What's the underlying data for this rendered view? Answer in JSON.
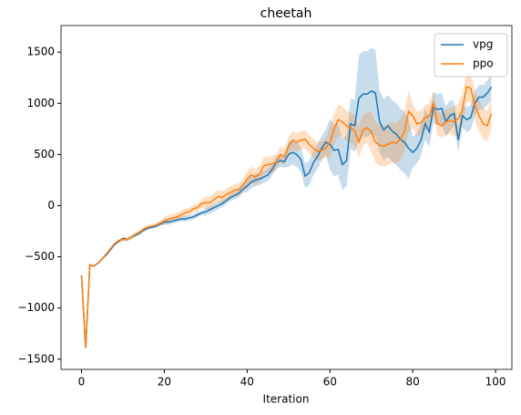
{
  "chart_data": {
    "type": "line",
    "title": "cheetah",
    "xlabel": "Iteration",
    "x": [
      0,
      1,
      2,
      3,
      4,
      5,
      6,
      7,
      8,
      9,
      10,
      11,
      12,
      13,
      14,
      15,
      16,
      17,
      18,
      19,
      20,
      21,
      22,
      23,
      24,
      25,
      26,
      27,
      28,
      29,
      30,
      31,
      32,
      33,
      34,
      35,
      36,
      37,
      38,
      39,
      40,
      41,
      42,
      43,
      44,
      45,
      46,
      47,
      48,
      49,
      50,
      51,
      52,
      53,
      54,
      55,
      56,
      57,
      58,
      59,
      60,
      61,
      62,
      63,
      64,
      65,
      66,
      67,
      68,
      69,
      70,
      71,
      72,
      73,
      74,
      75,
      76,
      77,
      78,
      79,
      80,
      81,
      82,
      83,
      84,
      85,
      86,
      87,
      88,
      89,
      90,
      91,
      92,
      93,
      94,
      95,
      96,
      97,
      98,
      99
    ],
    "series": [
      {
        "name": "vpg",
        "color": "#1f77b4",
        "values": [
          -680,
          -1390,
          -580,
          -590,
          -560,
          -520,
          -480,
          -430,
          -380,
          -350,
          -320,
          -330,
          -310,
          -290,
          -270,
          -240,
          -220,
          -210,
          -200,
          -180,
          -160,
          -160,
          -150,
          -140,
          -130,
          -130,
          -120,
          -110,
          -90,
          -70,
          -60,
          -40,
          -20,
          0,
          20,
          50,
          80,
          100,
          120,
          160,
          190,
          230,
          250,
          260,
          280,
          300,
          350,
          420,
          440,
          430,
          500,
          520,
          500,
          450,
          290,
          320,
          420,
          480,
          560,
          620,
          600,
          540,
          550,
          400,
          440,
          800,
          780,
          1050,
          1090,
          1090,
          1120,
          1100,
          820,
          740,
          780,
          730,
          700,
          650,
          620,
          560,
          520,
          560,
          640,
          800,
          720,
          960,
          940,
          950,
          820,
          880,
          900,
          640,
          880,
          840,
          860,
          1000,
          1060,
          1060,
          1100,
          1160
        ],
        "lower": [
          -690,
          -1400,
          -590,
          -600,
          -570,
          -530,
          -490,
          -440,
          -390,
          -360,
          -335,
          -345,
          -325,
          -305,
          -285,
          -255,
          -235,
          -225,
          -215,
          -195,
          -185,
          -185,
          -175,
          -165,
          -155,
          -155,
          -145,
          -135,
          -115,
          -95,
          -95,
          -75,
          -55,
          -35,
          -15,
          15,
          45,
          65,
          85,
          125,
          130,
          170,
          190,
          200,
          220,
          240,
          290,
          360,
          380,
          370,
          380,
          400,
          380,
          330,
          170,
          200,
          300,
          360,
          440,
          500,
          350,
          290,
          300,
          150,
          190,
          550,
          530,
          630,
          670,
          670,
          700,
          680,
          520,
          440,
          480,
          430,
          400,
          350,
          320,
          260,
          370,
          410,
          490,
          650,
          570,
          810,
          790,
          800,
          670,
          730,
          780,
          520,
          760,
          720,
          740,
          880,
          940,
          940,
          980,
          1040
        ],
        "upper": [
          -670,
          -1380,
          -570,
          -580,
          -550,
          -510,
          -470,
          -420,
          -370,
          -340,
          -305,
          -315,
          -295,
          -275,
          -255,
          -225,
          -205,
          -195,
          -185,
          -165,
          -135,
          -135,
          -125,
          -115,
          -105,
          -105,
          -95,
          -85,
          -65,
          -45,
          -25,
          -5,
          15,
          35,
          55,
          85,
          115,
          135,
          155,
          195,
          250,
          290,
          310,
          320,
          340,
          360,
          410,
          480,
          500,
          490,
          620,
          640,
          620,
          570,
          410,
          440,
          540,
          600,
          680,
          740,
          850,
          790,
          800,
          650,
          690,
          1050,
          1030,
          1470,
          1510,
          1510,
          1540,
          1520,
          1120,
          1040,
          1080,
          1030,
          1000,
          950,
          920,
          860,
          670,
          710,
          790,
          950,
          870,
          1110,
          1090,
          1100,
          970,
          1030,
          1020,
          760,
          1000,
          960,
          980,
          1120,
          1180,
          1180,
          1220,
          1280
        ]
      },
      {
        "name": "ppo",
        "color": "#ff7f0e",
        "values": [
          -680,
          -1390,
          -580,
          -590,
          -560,
          -520,
          -470,
          -420,
          -370,
          -340,
          -330,
          -330,
          -310,
          -280,
          -260,
          -230,
          -210,
          -200,
          -190,
          -170,
          -150,
          -130,
          -120,
          -110,
          -90,
          -70,
          -60,
          -30,
          -20,
          20,
          30,
          30,
          60,
          90,
          80,
          110,
          130,
          150,
          160,
          200,
          260,
          300,
          280,
          310,
          390,
          400,
          410,
          420,
          500,
          480,
          580,
          640,
          620,
          640,
          650,
          600,
          560,
          530,
          540,
          560,
          620,
          750,
          840,
          820,
          780,
          760,
          730,
          620,
          740,
          760,
          720,
          620,
          590,
          580,
          600,
          620,
          610,
          650,
          720,
          920,
          880,
          800,
          810,
          860,
          880,
          1000,
          800,
          780,
          820,
          830,
          820,
          850,
          940,
          1160,
          1150,
          980,
          880,
          800,
          780,
          900
        ],
        "lower": [
          -690,
          -1400,
          -590,
          -600,
          -570,
          -530,
          -480,
          -430,
          -380,
          -350,
          -350,
          -350,
          -330,
          -300,
          -280,
          -250,
          -230,
          -220,
          -210,
          -190,
          -190,
          -170,
          -160,
          -150,
          -130,
          -110,
          -100,
          -70,
          -60,
          -20,
          -30,
          -30,
          0,
          30,
          20,
          50,
          70,
          90,
          100,
          140,
          180,
          220,
          200,
          230,
          310,
          320,
          330,
          340,
          420,
          400,
          490,
          550,
          530,
          550,
          560,
          510,
          470,
          440,
          450,
          470,
          470,
          600,
          690,
          670,
          630,
          610,
          580,
          470,
          590,
          610,
          520,
          420,
          390,
          380,
          400,
          420,
          410,
          450,
          520,
          720,
          760,
          680,
          690,
          740,
          760,
          880,
          680,
          660,
          700,
          710,
          670,
          700,
          790,
          1010,
          1000,
          830,
          730,
          650,
          630,
          750
        ],
        "upper": [
          -670,
          -1380,
          -570,
          -580,
          -550,
          -510,
          -460,
          -410,
          -360,
          -330,
          -310,
          -310,
          -290,
          -260,
          -240,
          -210,
          -190,
          -180,
          -170,
          -150,
          -110,
          -90,
          -80,
          -70,
          -50,
          -30,
          -20,
          10,
          20,
          60,
          90,
          90,
          120,
          150,
          140,
          170,
          190,
          210,
          220,
          260,
          340,
          380,
          360,
          390,
          470,
          480,
          490,
          500,
          580,
          560,
          670,
          730,
          710,
          730,
          740,
          690,
          650,
          620,
          630,
          650,
          770,
          900,
          990,
          970,
          930,
          910,
          880,
          770,
          890,
          910,
          920,
          820,
          790,
          780,
          800,
          820,
          810,
          850,
          920,
          1120,
          1000,
          920,
          930,
          980,
          1000,
          1120,
          920,
          900,
          940,
          950,
          970,
          1000,
          1090,
          1310,
          1300,
          1130,
          1030,
          950,
          930,
          1050
        ]
      }
    ],
    "xlim": [
      -4.95,
      103.95
    ],
    "xticks": [
      0,
      20,
      40,
      60,
      80,
      100
    ],
    "ylim": [
      -1600,
      1760
    ],
    "yticks": [
      {
        "value": -1500,
        "label": "−1500"
      },
      {
        "value": -1000,
        "label": "−1000"
      },
      {
        "value": -500,
        "label": "−500"
      },
      0,
      500,
      1000,
      1500
    ],
    "legend": "upper right"
  }
}
